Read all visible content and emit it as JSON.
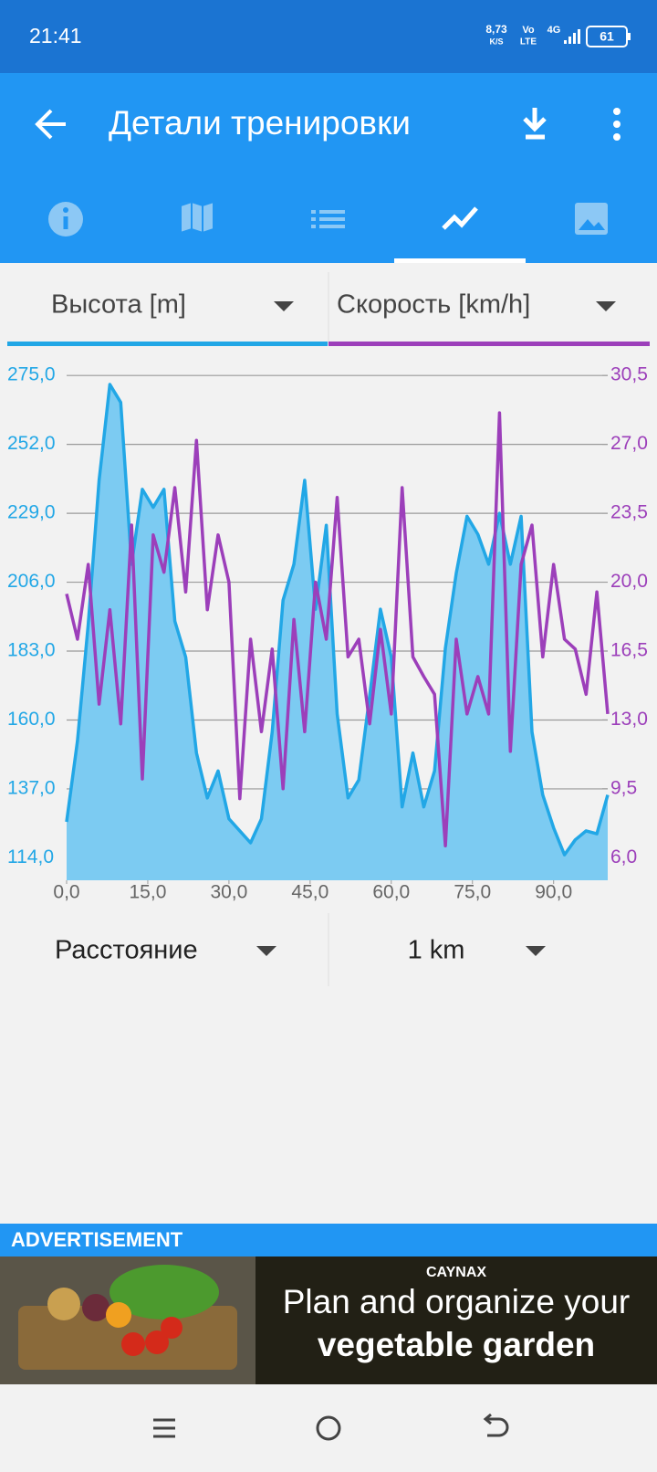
{
  "status_bar": {
    "time": "21:41",
    "net_speed": "8,73",
    "net_unit": "K/S",
    "volte_top": "Vo",
    "volte_bottom": "LTE",
    "signal": "4G",
    "battery": "61"
  },
  "app_bar": {
    "title": "Детали тренировки"
  },
  "selectors": {
    "left_series": "Высота [m]",
    "right_series": "Скорость [km/h]",
    "x_axis": "Расстояние",
    "interval": "1 km"
  },
  "chart_data": {
    "type": "line",
    "x": [
      0,
      2,
      4,
      6,
      8,
      10,
      12,
      14,
      16,
      18,
      20,
      22,
      24,
      26,
      28,
      30,
      32,
      34,
      36,
      38,
      40,
      42,
      44,
      46,
      48,
      50,
      52,
      54,
      56,
      58,
      60,
      62,
      64,
      66,
      68,
      70,
      72,
      74,
      76,
      78,
      80,
      82,
      84,
      86,
      88,
      90,
      92,
      94,
      96,
      98,
      100
    ],
    "series": [
      {
        "name": "Высота [m]",
        "color": "#22a7e6",
        "fill": "#7ccbf2",
        "axis": "y",
        "values": [
          126,
          153,
          192,
          240,
          272,
          266,
          212,
          237,
          231,
          237,
          193,
          181,
          149,
          134,
          143,
          127,
          123,
          119,
          127,
          156,
          200,
          212,
          240,
          197,
          225,
          162,
          134,
          140,
          168,
          197,
          181,
          131,
          149,
          131,
          143,
          184,
          209,
          228,
          222,
          212,
          229,
          212,
          228,
          156,
          135,
          124,
          115,
          120,
          123,
          122,
          135
        ]
      },
      {
        "name": "Скорость [km/h]",
        "color": "#9c3fba",
        "axis": "y2",
        "values": [
          19.4,
          17.1,
          20.9,
          13.8,
          18.6,
          12.8,
          22.9,
          10.0,
          22.4,
          20.5,
          24.8,
          19.5,
          27.2,
          18.6,
          22.4,
          20.0,
          9.0,
          17.1,
          12.4,
          16.6,
          9.5,
          18.1,
          12.4,
          20.0,
          17.1,
          24.3,
          16.2,
          17.1,
          12.8,
          17.6,
          13.3,
          24.8,
          16.2,
          15.2,
          14.3,
          6.6,
          17.1,
          13.3,
          15.2,
          13.3,
          28.6,
          11.4,
          20.9,
          22.9,
          16.2,
          20.9,
          17.1,
          16.6,
          14.3,
          19.5,
          13.3
        ]
      }
    ],
    "xlim": [
      0,
      100
    ],
    "xticks": [
      {
        "value": 0,
        "label": "0,0"
      },
      {
        "value": 15,
        "label": "15,0"
      },
      {
        "value": 30,
        "label": "30,0"
      },
      {
        "value": 45,
        "label": "45,0"
      },
      {
        "value": 60,
        "label": "60,0"
      },
      {
        "value": 75,
        "label": "75,0"
      },
      {
        "value": 90,
        "label": "90,0"
      }
    ],
    "ylim": [
      106.5,
      277.5
    ],
    "yticks": [
      {
        "value": 114,
        "label": "114,0"
      },
      {
        "value": 137,
        "label": "137,0"
      },
      {
        "value": 160,
        "label": "160,0"
      },
      {
        "value": 183,
        "label": "183,0"
      },
      {
        "value": 206,
        "label": "206,0"
      },
      {
        "value": 229,
        "label": "229,0"
      },
      {
        "value": 252,
        "label": "252,0"
      },
      {
        "value": 275,
        "label": "275,0"
      }
    ],
    "y2lim": [
      4.85,
      30.88
    ],
    "y2ticks": [
      {
        "value": 6,
        "label": "6,0"
      },
      {
        "value": 9.5,
        "label": "9,5"
      },
      {
        "value": 13,
        "label": "13,0"
      },
      {
        "value": 16.5,
        "label": "16,5"
      },
      {
        "value": 20,
        "label": "20,0"
      },
      {
        "value": 23.5,
        "label": "23,5"
      },
      {
        "value": 27,
        "label": "27,0"
      },
      {
        "value": 30.5,
        "label": "30,5"
      }
    ],
    "grid": true
  },
  "ad": {
    "label": "ADVERTISEMENT",
    "brand": "CAYNAX",
    "headline_1": "Plan and organize your",
    "headline_2": "vegetable garden"
  }
}
